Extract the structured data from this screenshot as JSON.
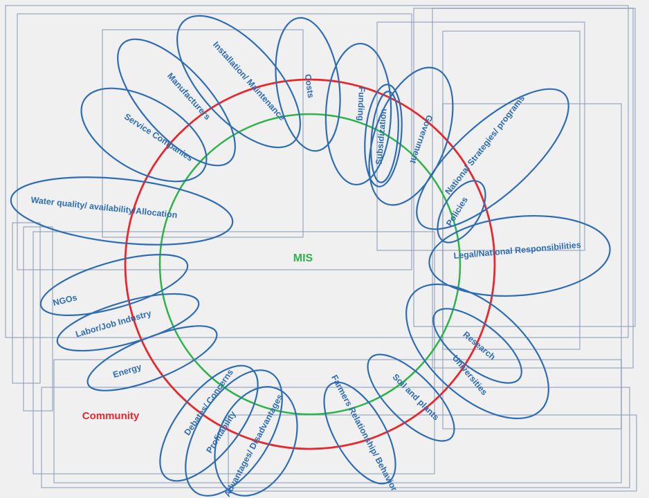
{
  "center_label": "MIS",
  "community_label": "Community",
  "colors": {
    "label_blue": "#2e6db4",
    "bubble_stroke": "#2e6db4",
    "outer_ring": "#e8262b",
    "inner_ring": "#2db34a",
    "mis_text": "#2db34a",
    "community_text": "#e8262b"
  },
  "stakeholders": [
    "Installation/ Maintenance",
    "Costs",
    "Funding",
    "Subsidization",
    "Government",
    "National Strategies/ programs",
    "Policies",
    "Legal/National Responsibilities",
    "Research",
    "Universities",
    "Soil and plants",
    "Farmers Relationship/ Behavior",
    "Advantages/ Disadvantages",
    "Profitability",
    "Debates/ Concerns",
    "Energy",
    "Labor/Job Industry",
    "NGOs",
    "Water quality/ availability/Allocation",
    "Service Companies",
    "Manufacturers"
  ]
}
